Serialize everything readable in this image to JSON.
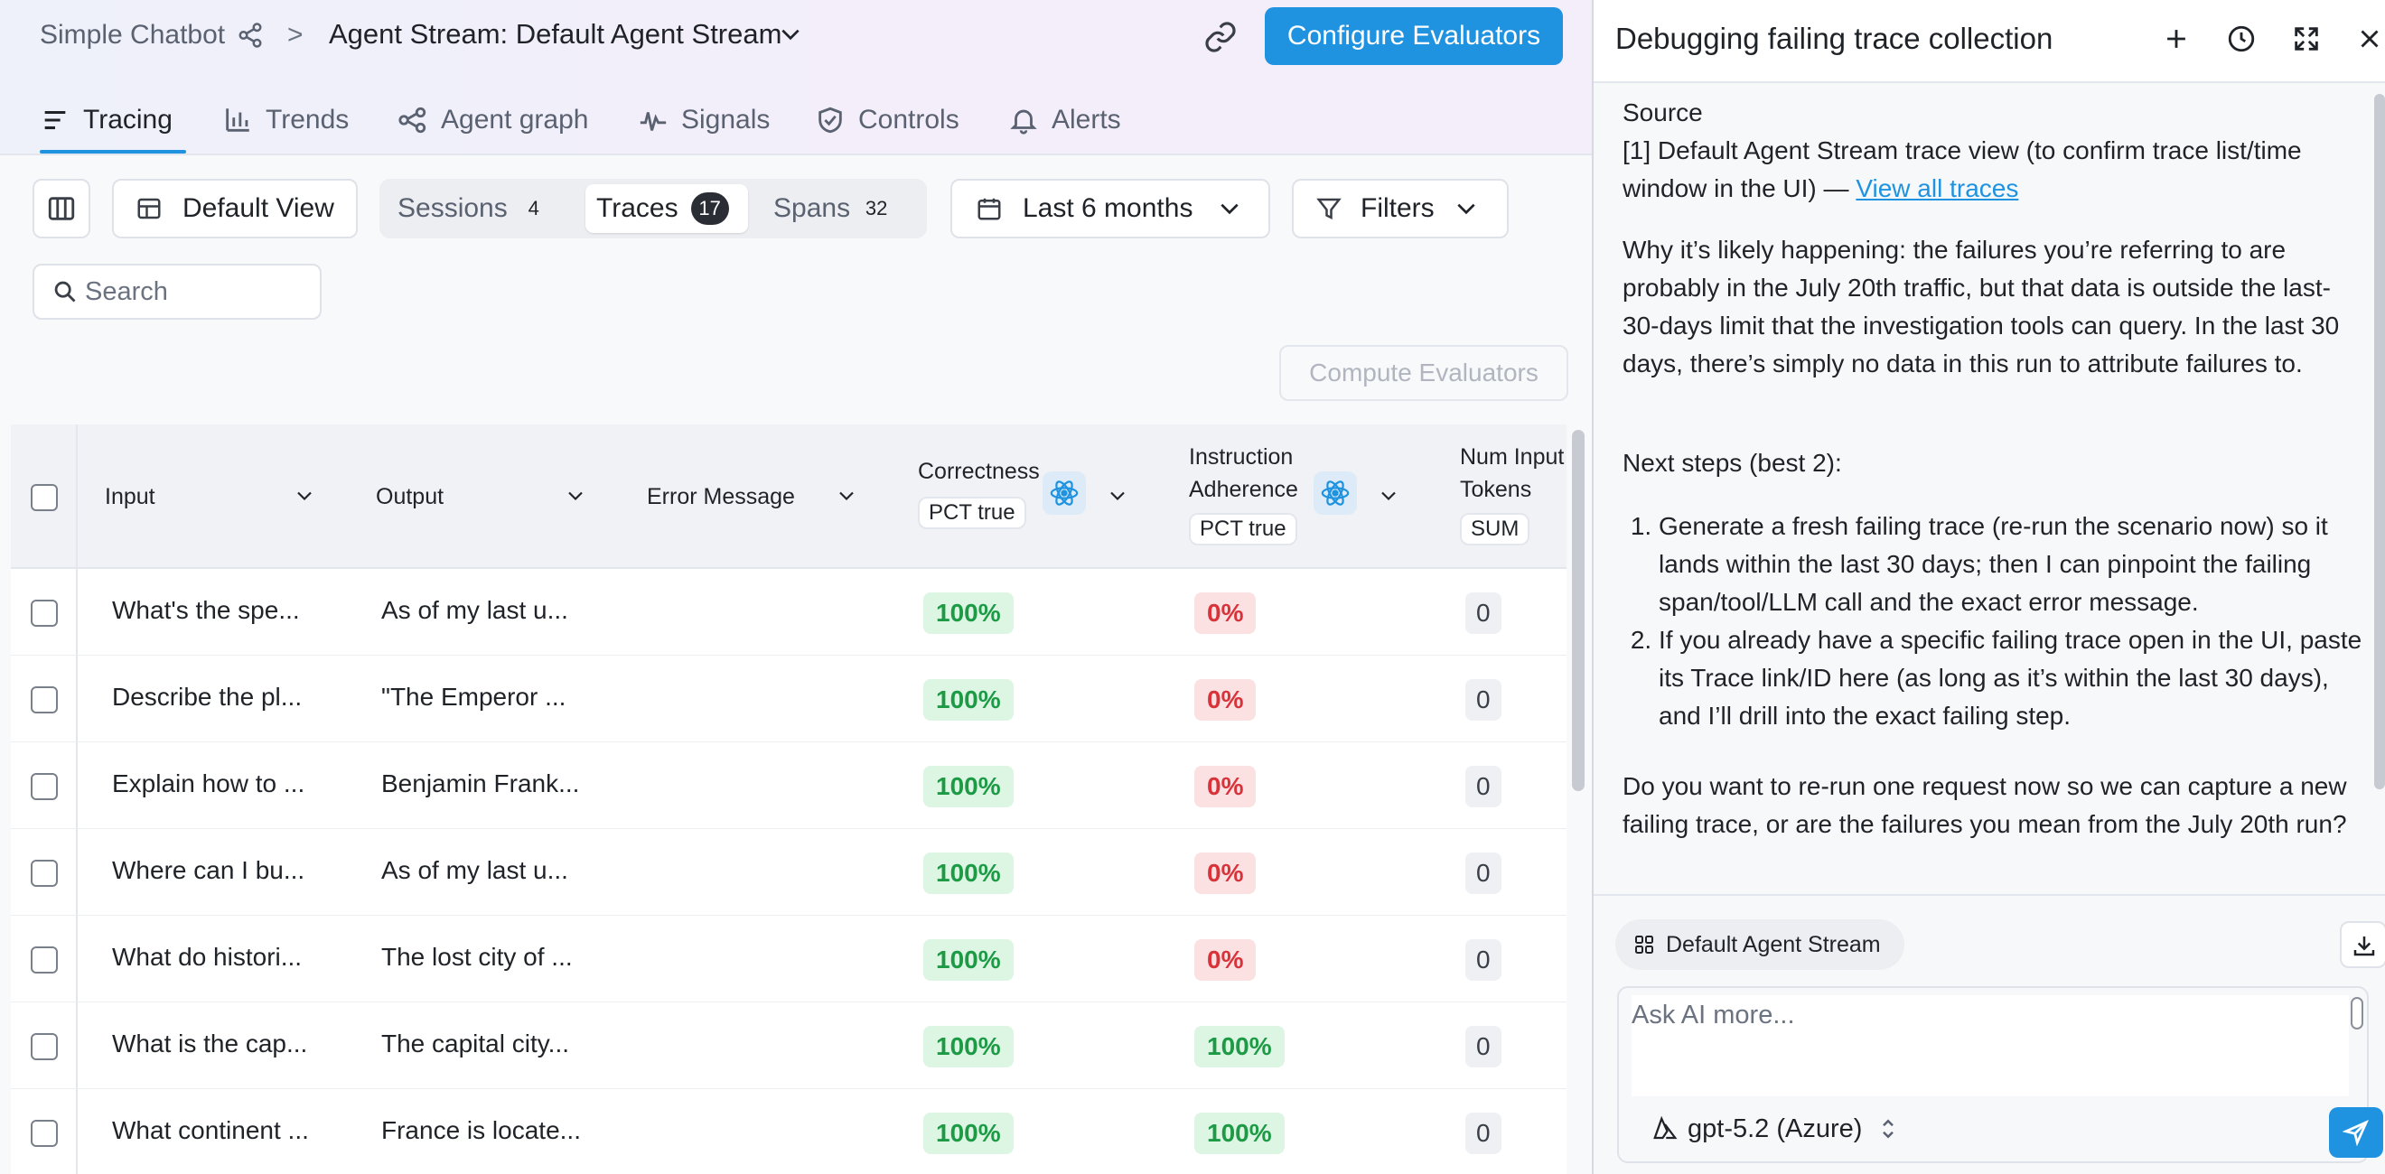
{
  "header": {
    "app_name": "Simple Chatbot",
    "separator": ">",
    "stream_label": "Agent Stream: Default Agent Stream",
    "configure_label": "Configure Evaluators"
  },
  "tabs": [
    {
      "label": "Tracing",
      "icon": "list-icon"
    },
    {
      "label": "Trends",
      "icon": "bar-chart-icon"
    },
    {
      "label": "Agent graph",
      "icon": "graph-icon"
    },
    {
      "label": "Signals",
      "icon": "signal-icon"
    },
    {
      "label": "Controls",
      "icon": "shield-icon"
    },
    {
      "label": "Alerts",
      "icon": "bell-icon"
    }
  ],
  "toolbar": {
    "view_label": "Default View",
    "segments": [
      {
        "label": "Sessions",
        "count": "4"
      },
      {
        "label": "Traces",
        "count": "17"
      },
      {
        "label": "Spans",
        "count": "32"
      }
    ],
    "date_label": "Last 6 months",
    "filters_label": "Filters",
    "search_placeholder": "Search",
    "compute_label": "Compute Evaluators"
  },
  "table": {
    "columns": {
      "input": "Input",
      "output": "Output",
      "error": "Error Message",
      "correctness": "Correctness",
      "correctness_agg": "PCT true",
      "adherence_1": "Instruction",
      "adherence_2": "Adherence",
      "adherence_agg": "PCT true",
      "tokens_1": "Num Input",
      "tokens_2": "Tokens",
      "tokens_agg": "SUM"
    },
    "rows": [
      {
        "input": "What's the spe...",
        "output": "As of my last u...",
        "error": "",
        "correctness": "100%",
        "adherence": "0%",
        "tokens": "0"
      },
      {
        "input": "Describe the pl...",
        "output": "\"The Emperor ...",
        "error": "",
        "correctness": "100%",
        "adherence": "0%",
        "tokens": "0"
      },
      {
        "input": "Explain how to ...",
        "output": "Benjamin Frank...",
        "error": "",
        "correctness": "100%",
        "adherence": "0%",
        "tokens": "0"
      },
      {
        "input": "Where can I bu...",
        "output": "As of my last u...",
        "error": "",
        "correctness": "100%",
        "adherence": "0%",
        "tokens": "0"
      },
      {
        "input": "What do histori...",
        "output": "The lost city of ...",
        "error": "",
        "correctness": "100%",
        "adherence": "0%",
        "tokens": "0"
      },
      {
        "input": "What is the cap...",
        "output": "The capital city...",
        "error": "",
        "correctness": "100%",
        "adherence": "100%",
        "tokens": "0"
      },
      {
        "input": "What continent ...",
        "output": "France is locate...",
        "error": "",
        "correctness": "100%",
        "adherence": "100%",
        "tokens": "0"
      }
    ]
  },
  "panel": {
    "title": "Debugging failing trace collection",
    "source_heading": "Source",
    "source_text": "[1] Default Agent Stream trace view (to confirm trace list/time window in the UI) — ",
    "source_link": "View all traces",
    "para1": "Why it’s likely happening: the failures you’re referring to are probably in the July 20th traffic, but that data is outside the last-30-days limit that the investigation tools can query. In the last 30 days, there’s simply no data in this run to attribute failures to.",
    "next_steps": "Next steps (best 2):",
    "steps": [
      "Generate a fresh failing trace (re-run the scenario now) so it lands within the last 30 days; then I can pinpoint the failing span/tool/LLM call and the exact error message.",
      "If you already have a specific failing trace open in the UI, paste its Trace link/ID here (as long as it’s within the last 30 days), and I’ll drill into the exact failing step."
    ],
    "question": "Do you want to re-run one request now so we can capture a new failing trace, or are the failures you mean from the July 20th run?",
    "context_chip": "Default Agent Stream",
    "composer_placeholder": "Ask AI more...",
    "model_label": "gpt-5.2 (Azure)"
  },
  "colors": {
    "accent": "#1f93e0",
    "good_bg": "#ddf6e3",
    "good_fg": "#1e9a46",
    "bad_bg": "#fbe1e1",
    "bad_fg": "#d8333a"
  }
}
